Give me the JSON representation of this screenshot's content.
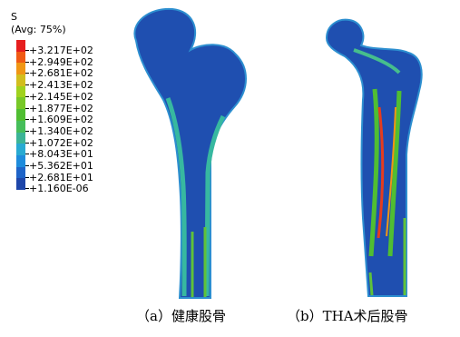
{
  "legend": {
    "title": "S",
    "subtitle": "(Avg: 75%)",
    "labels": [
      "+3.217E+02",
      "+2.949E+02",
      "+2.681E+02",
      "+2.413E+02",
      "+2.145E+02",
      "+1.877E+02",
      "+1.609E+02",
      "+1.340E+02",
      "+1.072E+02",
      "+8.043E+01",
      "+5.362E+01",
      "+2.681E+01",
      "+1.160E-06"
    ],
    "colors": [
      "#e61e1e",
      "#f05a14",
      "#f09614",
      "#d2be1e",
      "#a0d21e",
      "#78c828",
      "#50be32",
      "#46be5a",
      "#3cb496",
      "#28aad2",
      "#1e8cdc",
      "#1e64c8",
      "#1e46aa"
    ]
  },
  "captions": {
    "left": "（a）健康股骨",
    "right": "（b）THA术后股骨"
  },
  "palette": {
    "base": "#1f4fb0",
    "edge": "#37b8a0",
    "highlight": "#e63c1e"
  }
}
